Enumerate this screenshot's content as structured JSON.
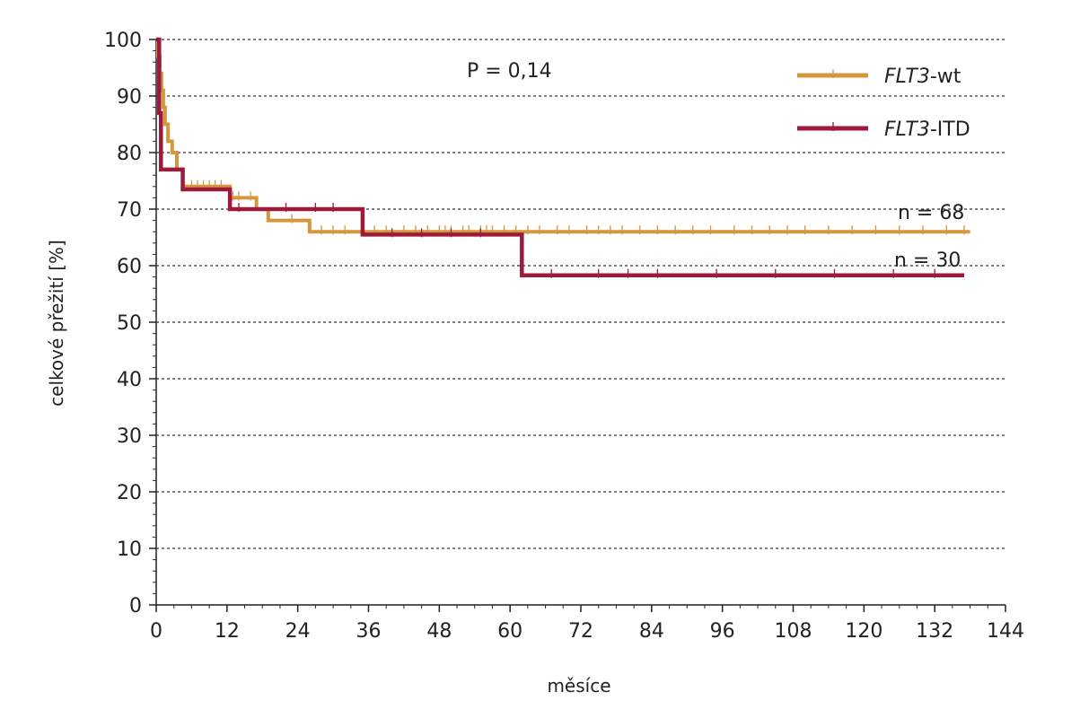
{
  "chart_data": {
    "type": "line",
    "subtype": "kaplan-meier",
    "title": "",
    "xlabel": "měsíce",
    "ylabel": "celkové přežití [%]",
    "xlim": [
      0,
      144
    ],
    "ylim": [
      0,
      100
    ],
    "xticks": [
      "0",
      "12",
      "24",
      "36",
      "48",
      "60",
      "72",
      "84",
      "96",
      "108",
      "120",
      "132",
      "144"
    ],
    "yticks": [
      "0",
      "10",
      "20",
      "30",
      "40",
      "50",
      "60",
      "70",
      "80",
      "90",
      "100"
    ],
    "grid": "horizontal dashed",
    "legend_position": "top-right",
    "annotation": "P = 0,14",
    "series": [
      {
        "name_italic": "FLT3",
        "name_rest": "-wt",
        "color": "#D4973E",
        "count_label": "n = 68",
        "steps": [
          [
            0,
            100
          ],
          [
            0.3,
            97
          ],
          [
            0.6,
            94
          ],
          [
            0.9,
            91
          ],
          [
            1.2,
            88
          ],
          [
            1.5,
            85
          ],
          [
            2,
            82
          ],
          [
            2.7,
            80
          ],
          [
            3.5,
            77
          ],
          [
            4.5,
            74
          ],
          [
            12.5,
            72
          ],
          [
            17,
            70
          ],
          [
            19,
            68
          ],
          [
            26,
            66
          ],
          [
            138,
            66
          ]
        ],
        "censors": [
          6,
          7,
          8,
          9,
          10,
          11,
          13,
          14,
          16,
          23,
          28,
          30,
          32,
          35,
          37,
          39,
          42,
          44,
          46,
          48,
          49,
          50,
          52,
          53,
          55,
          56,
          57,
          59,
          61,
          63,
          65,
          68,
          70,
          73,
          75,
          77,
          79,
          82,
          85,
          88,
          91,
          94,
          98,
          101,
          104,
          107,
          110,
          114,
          118,
          122,
          126,
          130,
          134,
          137
        ]
      },
      {
        "name_italic": "FLT3",
        "name_rest": "-ITD",
        "color": "#9E1A3A",
        "count_label": "n = 30",
        "steps": [
          [
            0,
            100
          ],
          [
            0.5,
            87
          ],
          [
            0.8,
            77
          ],
          [
            4.5,
            73.5
          ],
          [
            12.5,
            70
          ],
          [
            35,
            65.5
          ],
          [
            62,
            58.3
          ],
          [
            137,
            58.3
          ]
        ],
        "censors": [
          14,
          22,
          27,
          30,
          40,
          45,
          50,
          55,
          67,
          75,
          80,
          85,
          95,
          105,
          115,
          125,
          132
        ]
      }
    ]
  }
}
